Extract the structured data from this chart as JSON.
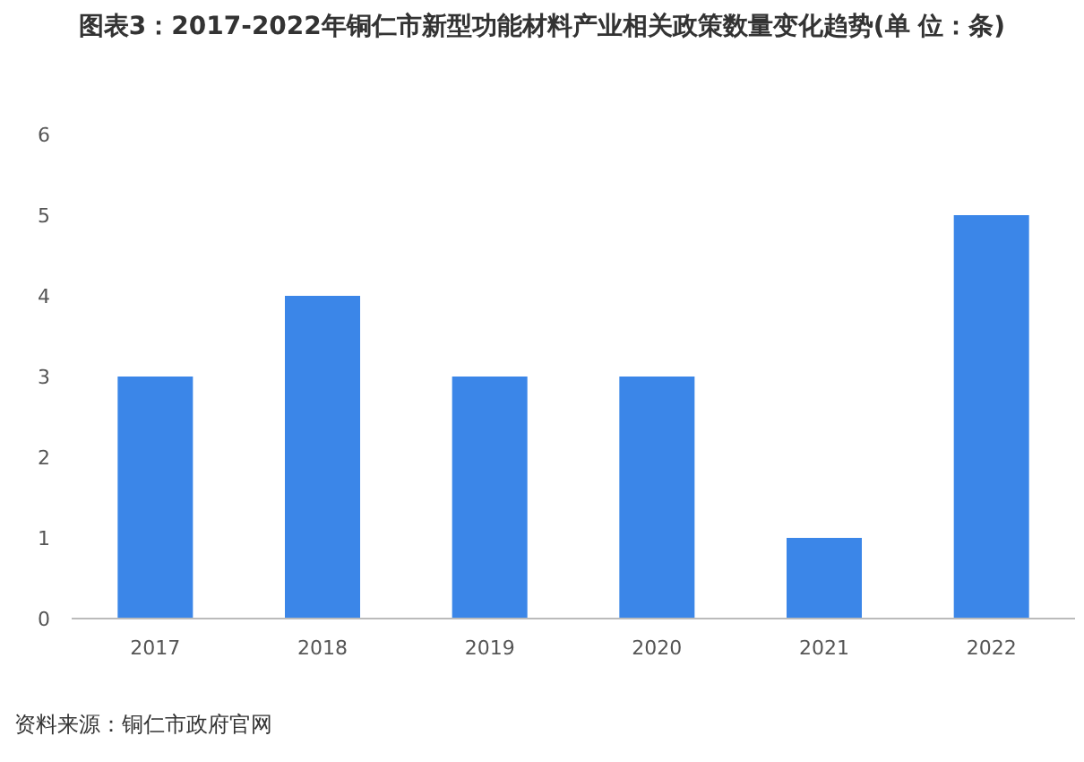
{
  "chart_data": {
    "type": "bar",
    "title": "图表3：2017-2022年铜仁市新型功能材料产业相关政策数量变化趋势(单 位：条)",
    "categories": [
      "2017",
      "2018",
      "2019",
      "2020",
      "2021",
      "2022"
    ],
    "values": [
      3,
      4,
      3,
      3,
      1,
      5
    ],
    "color": "#3b86e8",
    "ylim": [
      0,
      6
    ],
    "yticks": [
      0,
      1,
      2,
      3,
      4,
      5,
      6
    ],
    "grid": false,
    "annotations": [
      "资料来源：铜仁市政府官网"
    ]
  }
}
